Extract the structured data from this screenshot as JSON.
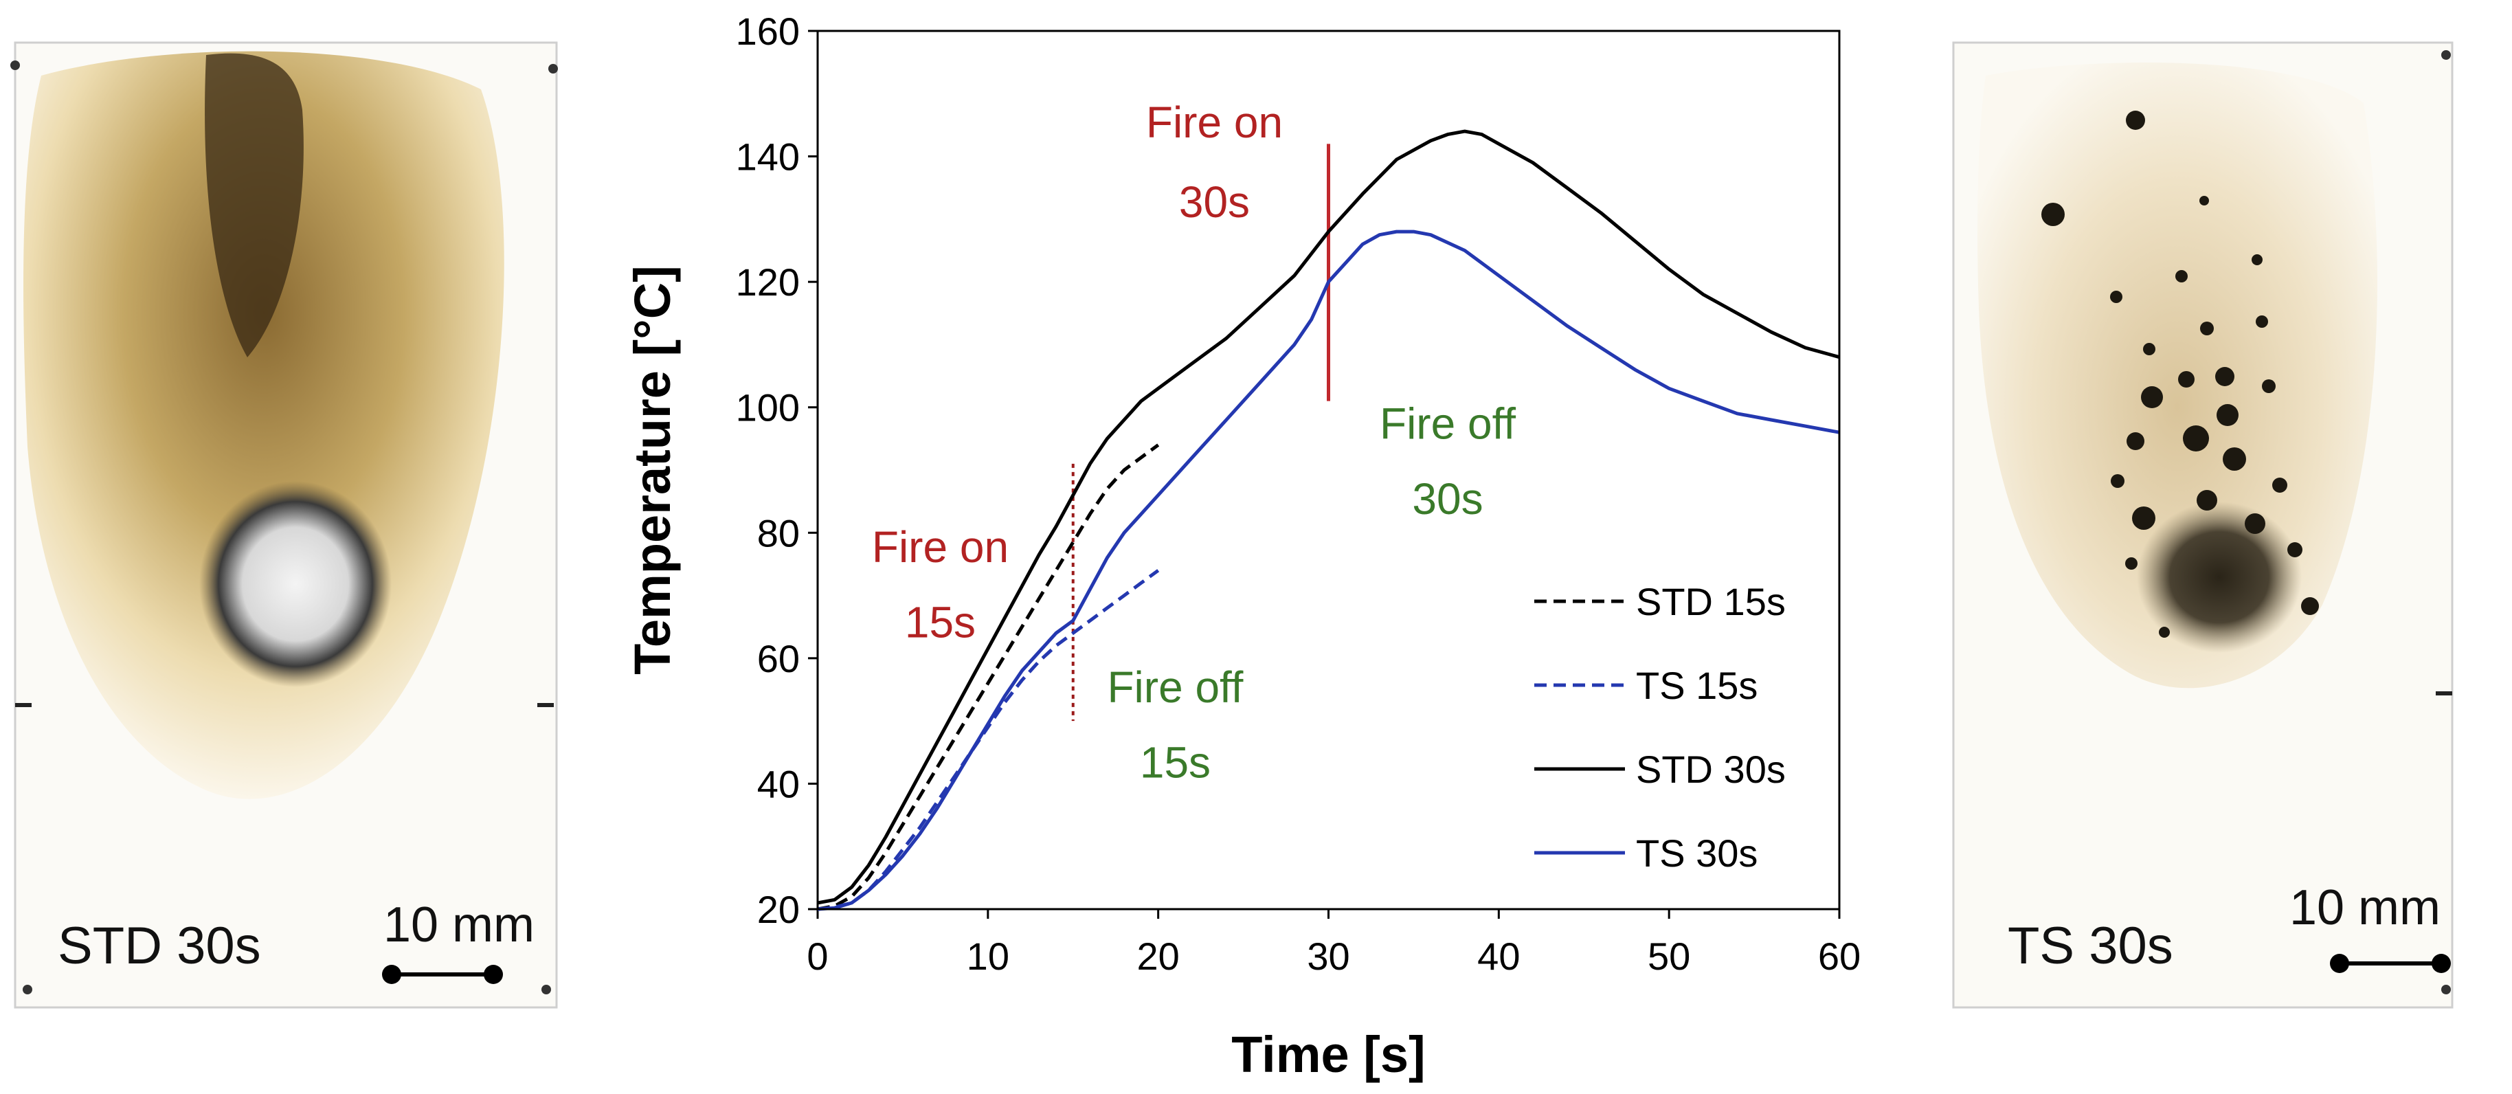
{
  "left_panel": {
    "label": "STD 30s",
    "scale_label": "10 mm"
  },
  "right_panel": {
    "label": "TS 30s",
    "scale_label": "10 mm"
  },
  "colors": {
    "std": "#000000",
    "ts": "#2438b0",
    "fire_on": "#b22222",
    "fire_off": "#3a7a2a",
    "marker_30": "#c0282d",
    "marker_15": "#9b1b1b"
  },
  "annotations": {
    "fire_on_30_line1": "Fire on",
    "fire_on_30_line2": "30s",
    "fire_off_30_line1": "Fire off",
    "fire_off_30_line2": "30s",
    "fire_on_15_line1": "Fire on",
    "fire_on_15_line2": "15s",
    "fire_off_15_line1": "Fire off",
    "fire_off_15_line2": "15s"
  },
  "chart_data": {
    "type": "line",
    "title": "",
    "xlabel": "Time [s]",
    "ylabel": "Temperature [°C]",
    "xlim": [
      0,
      60
    ],
    "ylim": [
      20,
      160
    ],
    "xticks": [
      0,
      10,
      20,
      30,
      40,
      50,
      60
    ],
    "yticks": [
      20,
      40,
      60,
      80,
      100,
      120,
      140,
      160
    ],
    "grid": false,
    "legend_position": "lower-right",
    "vlines": [
      {
        "x": 15,
        "style": "dotted",
        "from": 50,
        "to": 91
      },
      {
        "x": 30,
        "style": "solid",
        "from": 101,
        "to": 142
      }
    ],
    "series": [
      {
        "name": "STD 15s",
        "style": "dashed",
        "color": "#000000",
        "x": [
          0,
          1,
          2,
          3,
          4,
          5,
          6,
          7,
          8,
          9,
          10,
          11,
          12,
          13,
          14,
          15,
          16,
          17,
          18,
          19,
          20
        ],
        "y": [
          20,
          20.5,
          22,
          25,
          29,
          33.5,
          38,
          42.5,
          47,
          51.5,
          56,
          60.5,
          65,
          69.5,
          74,
          78.5,
          83,
          87,
          90,
          92,
          94
        ]
      },
      {
        "name": "TS 15s",
        "style": "dashed",
        "color": "#2438b0",
        "x": [
          0,
          1,
          2,
          3,
          4,
          5,
          6,
          7,
          8,
          9,
          10,
          11,
          12,
          13,
          14,
          15,
          16,
          17,
          18,
          19,
          20
        ],
        "y": [
          20,
          20.3,
          21,
          23,
          26,
          29.5,
          33,
          37,
          41,
          45,
          49,
          53,
          56.5,
          59.5,
          62,
          64,
          66,
          68,
          70,
          72,
          74
        ]
      },
      {
        "name": "STD 30s",
        "style": "solid",
        "color": "#000000",
        "x": [
          0,
          1,
          2,
          3,
          4,
          5,
          6,
          7,
          8,
          9,
          10,
          11,
          12,
          13,
          14,
          15,
          16,
          17,
          18,
          19,
          20,
          22,
          24,
          26,
          28,
          30,
          32,
          34,
          36,
          37,
          38,
          39,
          40,
          42,
          44,
          46,
          48,
          50,
          52,
          54,
          56,
          58,
          60
        ],
        "y": [
          21,
          21.5,
          23.5,
          27,
          31.5,
          36.5,
          41.5,
          46.5,
          51.5,
          56.5,
          61.5,
          66.5,
          71.5,
          76.5,
          81,
          86,
          91,
          95,
          98,
          101,
          103,
          107,
          111,
          116,
          121,
          128,
          134,
          139.5,
          142.5,
          143.5,
          144,
          143.5,
          142,
          139,
          135,
          131,
          126.5,
          122,
          118,
          115,
          112,
          109.5,
          108
        ]
      },
      {
        "name": "TS 30s",
        "style": "solid",
        "color": "#2438b0",
        "x": [
          0,
          1,
          2,
          3,
          4,
          5,
          6,
          7,
          8,
          9,
          10,
          11,
          12,
          13,
          14,
          15,
          16,
          17,
          18,
          19,
          20,
          22,
          24,
          26,
          28,
          29,
          30,
          31,
          32,
          33,
          34,
          35,
          36,
          38,
          40,
          42,
          44,
          46,
          48,
          50,
          52,
          54,
          56,
          58,
          60
        ],
        "y": [
          20,
          20.2,
          21,
          23,
          25.5,
          28.5,
          32,
          36,
          40.5,
          45,
          49.5,
          54,
          58,
          61,
          64,
          66,
          71,
          76,
          80,
          83,
          86,
          92,
          98,
          104,
          110,
          114,
          120,
          123,
          126,
          127.5,
          128,
          128,
          127.5,
          125,
          121,
          117,
          113,
          109.5,
          106,
          103,
          101,
          99,
          98,
          97,
          96
        ]
      }
    ]
  }
}
